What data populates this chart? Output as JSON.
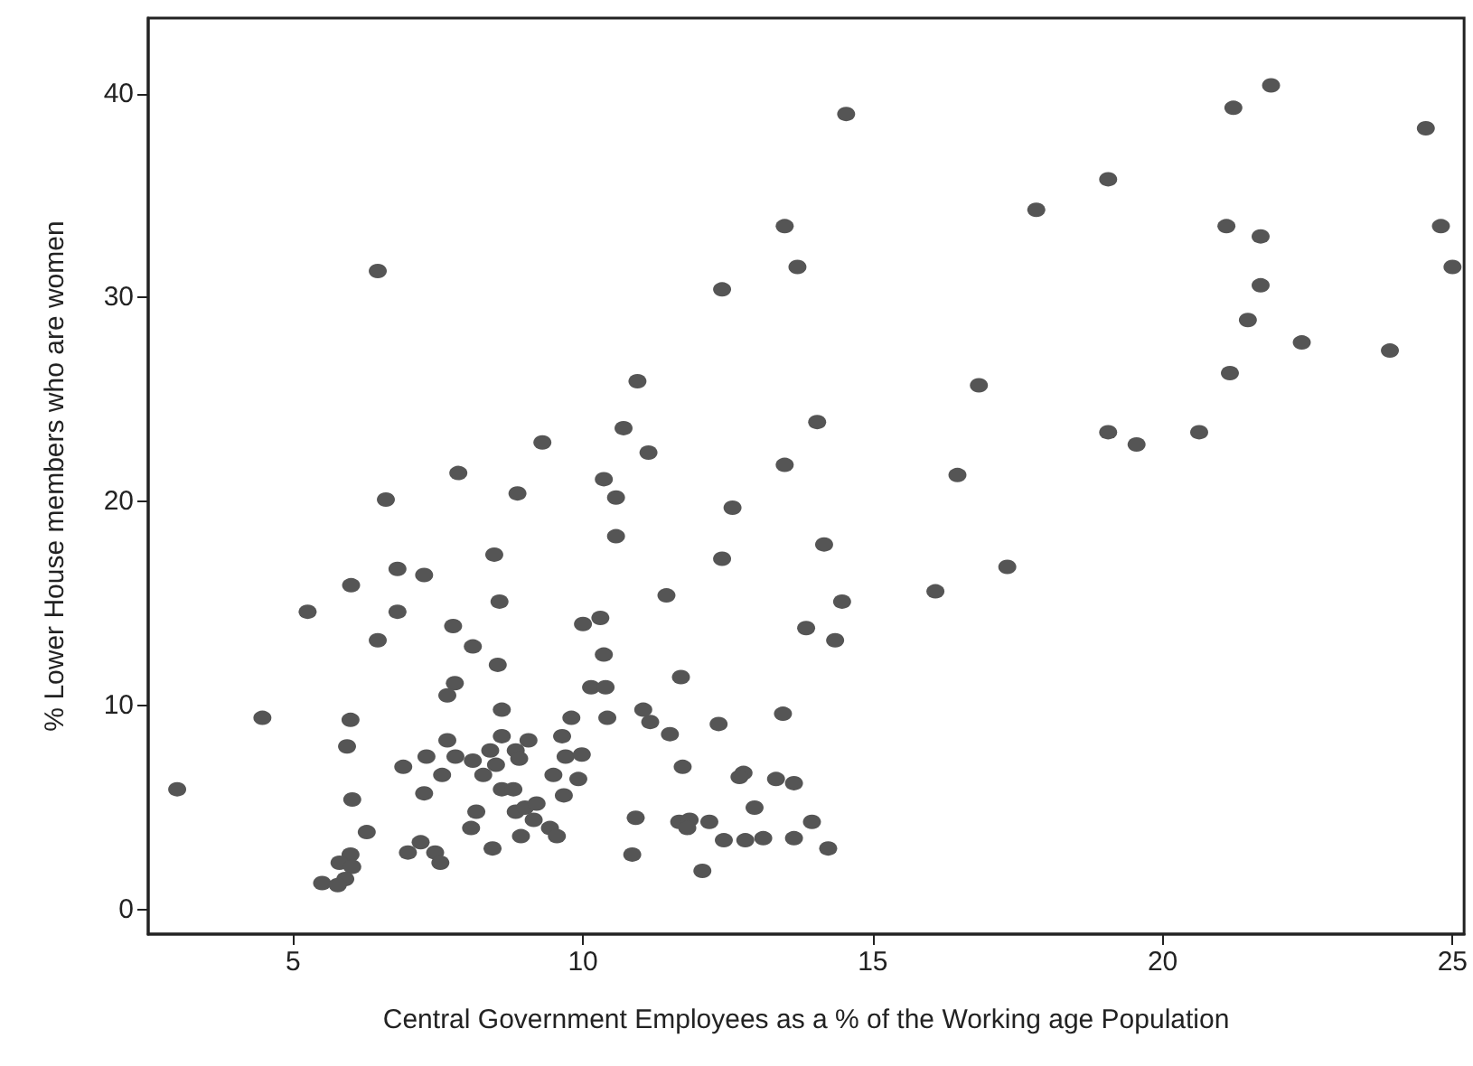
{
  "chart_data": {
    "type": "scatter",
    "xlabel": "Central Government Employees as a % of the Working age Population",
    "ylabel": "% Lower House members who are women",
    "xlim": [
      2.5,
      25.2
    ],
    "ylim": [
      -1.2,
      43.7
    ],
    "xticks": [
      5,
      10,
      15,
      20,
      25
    ],
    "yticks": [
      0,
      10,
      20,
      30,
      40
    ],
    "grid": false,
    "marker": "circle",
    "series": [
      {
        "color": "#555555",
        "x": [
          9.3,
          7.85,
          8.87,
          6.6,
          8.47,
          6.8,
          7.26,
          6.0,
          5.25,
          6.8,
          8.56,
          7.76,
          6.46,
          8.1,
          8.53,
          7.79,
          7.66,
          8.6,
          4.47,
          5.99,
          5.93,
          7.66,
          8.6,
          9.06,
          8.4,
          8.84,
          7.3,
          7.8,
          8.1,
          8.9,
          6.9,
          8.5,
          8.28,
          7.57,
          7.26,
          8.6,
          8.8,
          6.02,
          8.16,
          8.84,
          9.0,
          9.2,
          9.15,
          8.07,
          8.93,
          6.27,
          8.44,
          6.98,
          7.2,
          7.45,
          7.54,
          5.99,
          5.8,
          6.02,
          5.9,
          5.5,
          5.77,
          3.0,
          11.13,
          13.48,
          10.36,
          10.57,
          12.58,
          10.57,
          14.16,
          12.4,
          11.44,
          14.47,
          10.0,
          10.3,
          13.85,
          14.35,
          10.36,
          11.69,
          10.14,
          10.39,
          9.8,
          10.42,
          11.04,
          11.16,
          11.5,
          12.34,
          13.45,
          9.64,
          9.7,
          9.98,
          9.49,
          9.92,
          9.67,
          11.72,
          12.77,
          12.7,
          13.33,
          13.64,
          12.96,
          13.95,
          10.91,
          11.66,
          11.84,
          11.8,
          12.18,
          12.43,
          12.8,
          13.11,
          13.64,
          14.23,
          10.85,
          12.06,
          9.43,
          9.55,
          14.54,
          13.48,
          6.46,
          13.7,
          12.4,
          10.94,
          10.7,
          14.04,
          21.87,
          21.22,
          24.54,
          19.06,
          17.82,
          21.1,
          21.69,
          24.8,
          25.0,
          21.69,
          21.47,
          22.4,
          23.92,
          21.16,
          16.83,
          19.06,
          19.55,
          20.63,
          16.46,
          17.32,
          16.08
        ],
        "values": [
          22.9,
          21.4,
          20.4,
          20.1,
          17.4,
          16.7,
          16.4,
          15.9,
          14.6,
          14.6,
          15.1,
          13.9,
          13.2,
          12.9,
          12.0,
          11.1,
          10.5,
          9.8,
          9.4,
          9.3,
          8.0,
          8.3,
          8.5,
          8.3,
          7.8,
          7.8,
          7.5,
          7.5,
          7.3,
          7.4,
          7.0,
          7.1,
          6.6,
          6.6,
          5.7,
          5.9,
          5.9,
          5.4,
          4.8,
          4.8,
          5.0,
          5.2,
          4.4,
          4.0,
          3.6,
          3.8,
          3.0,
          2.8,
          3.3,
          2.8,
          2.3,
          2.7,
          2.3,
          2.1,
          1.5,
          1.3,
          1.2,
          5.9,
          22.4,
          21.8,
          21.1,
          20.2,
          19.7,
          18.3,
          17.9,
          17.2,
          15.4,
          15.1,
          14.0,
          14.3,
          13.8,
          13.2,
          12.5,
          11.4,
          10.9,
          10.9,
          9.4,
          9.4,
          9.8,
          9.2,
          8.6,
          9.1,
          9.6,
          8.5,
          7.5,
          7.6,
          6.6,
          6.4,
          5.6,
          7.0,
          6.7,
          6.5,
          6.4,
          6.2,
          5.0,
          4.3,
          4.5,
          4.3,
          4.4,
          4.0,
          4.3,
          3.4,
          3.4,
          3.5,
          3.5,
          3.0,
          2.7,
          1.9,
          4.0,
          3.6,
          39.0,
          33.5,
          31.3,
          31.5,
          30.4,
          25.9,
          23.6,
          23.9,
          40.4,
          39.3,
          38.3,
          35.8,
          34.3,
          33.5,
          33.0,
          33.5,
          31.5,
          30.6,
          28.9,
          27.8,
          27.4,
          26.3,
          25.7,
          23.4,
          22.8,
          23.4,
          21.3,
          16.8,
          15.6
        ]
      }
    ]
  }
}
